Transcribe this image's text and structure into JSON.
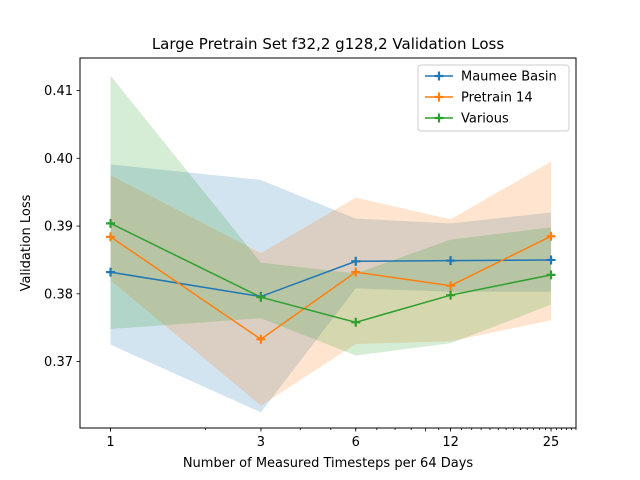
{
  "chart_data": {
    "type": "line",
    "title": "Large Pretrain Set f32,2 g128,2 Validation Loss",
    "xlabel": "Number of Measured Timesteps per 64 Days",
    "ylabel": "Validation Loss",
    "x_scale": "log",
    "x": [
      1,
      3,
      6,
      12,
      25
    ],
    "x_tick_labels": [
      "1",
      "3",
      "6",
      "12",
      "25"
    ],
    "xlim": [
      0.8,
      30
    ],
    "y_ticks": [
      0.37,
      0.38,
      0.39,
      0.4,
      0.41
    ],
    "y_tick_labels": [
      "0.37",
      "0.38",
      "0.39",
      "0.40",
      "0.41"
    ],
    "ylim": [
      0.3602,
      0.4148
    ],
    "grid": false,
    "legend_position": "top-right",
    "series": [
      {
        "name": "Maumee Basin",
        "color": "#1f77b4",
        "marker": "plus",
        "values": [
          0.3832,
          0.3796,
          0.3848,
          0.3849,
          0.385
        ],
        "upper": [
          0.3991,
          0.3968,
          0.3911,
          0.3904,
          0.392
        ],
        "lower": [
          0.3725,
          0.3625,
          0.3808,
          0.3803,
          0.3803
        ]
      },
      {
        "name": "Pretrain 14",
        "color": "#ff7f0e",
        "marker": "plus",
        "values": [
          0.3884,
          0.3733,
          0.3832,
          0.3812,
          0.3885
        ],
        "upper": [
          0.3975,
          0.386,
          0.3942,
          0.391,
          0.3995
        ],
        "lower": [
          0.382,
          0.3635,
          0.3726,
          0.373,
          0.3761
        ]
      },
      {
        "name": "Various",
        "color": "#2ca02c",
        "marker": "plus",
        "values": [
          0.3904,
          0.3795,
          0.3758,
          0.3798,
          0.3828
        ],
        "upper": [
          0.4122,
          0.3846,
          0.383,
          0.388,
          0.3898
        ],
        "lower": [
          0.3748,
          0.3764,
          0.3709,
          0.3727,
          0.3784
        ]
      }
    ]
  }
}
